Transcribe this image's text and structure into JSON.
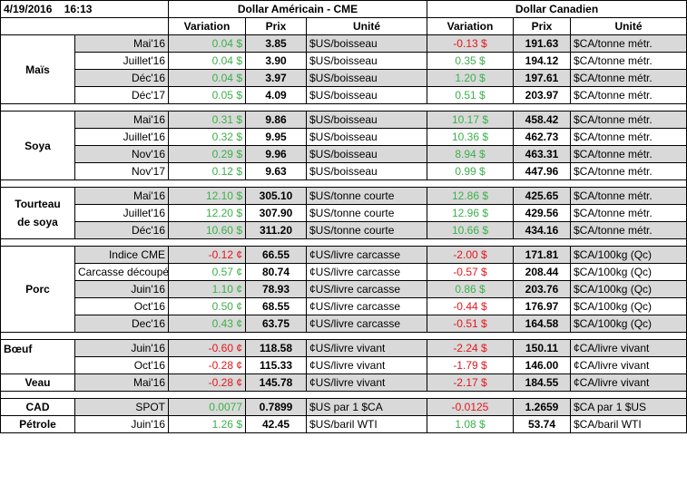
{
  "header": {
    "date": "4/19/2016",
    "time": "16:13",
    "group_usd": "Dollar Américain - CME",
    "group_cad": "Dollar Canadien",
    "col_variation": "Variation",
    "col_prix": "Prix",
    "col_unite": "Unité"
  },
  "colors": {
    "positive": "#3cb04a",
    "negative": "#e3161c",
    "row_shade": "#d9d9d9"
  },
  "rows": [
    {
      "commodity": "Maïs",
      "month": "Mai'16",
      "usd_var": "0.04 $",
      "usd_price": "3.85",
      "usd_unit": "$US/boisseau",
      "cad_var": "-0.13 $",
      "cad_price": "191.63",
      "cad_unit": "$CA/tonne métr."
    },
    {
      "commodity": "",
      "month": "Juillet'16",
      "usd_var": "0.04 $",
      "usd_price": "3.90",
      "usd_unit": "$US/boisseau",
      "cad_var": "0.35 $",
      "cad_price": "194.12",
      "cad_unit": "$CA/tonne métr."
    },
    {
      "commodity": "",
      "month": "Déc'16",
      "usd_var": "0.04 $",
      "usd_price": "3.97",
      "usd_unit": "$US/boisseau",
      "cad_var": "1.20 $",
      "cad_price": "197.61",
      "cad_unit": "$CA/tonne métr."
    },
    {
      "commodity": "",
      "month": "Déc'17",
      "usd_var": "0.05 $",
      "usd_price": "4.09",
      "usd_unit": "$US/boisseau",
      "cad_var": "0.51 $",
      "cad_price": "203.97",
      "cad_unit": "$CA/tonne métr."
    },
    {
      "commodity": "Soya",
      "month": "Mai'16",
      "usd_var": "0.31 $",
      "usd_price": "9.86",
      "usd_unit": "$US/boisseau",
      "cad_var": "10.17 $",
      "cad_price": "458.42",
      "cad_unit": "$CA/tonne métr."
    },
    {
      "commodity": "",
      "month": "Juillet'16",
      "usd_var": "0.32 $",
      "usd_price": "9.95",
      "usd_unit": "$US/boisseau",
      "cad_var": "10.36 $",
      "cad_price": "462.73",
      "cad_unit": "$CA/tonne métr."
    },
    {
      "commodity": "",
      "month": "Nov'16",
      "usd_var": "0.29 $",
      "usd_price": "9.96",
      "usd_unit": "$US/boisseau",
      "cad_var": "8.94 $",
      "cad_price": "463.31",
      "cad_unit": "$CA/tonne métr."
    },
    {
      "commodity": "",
      "month": "Nov'17",
      "usd_var": "0.12 $",
      "usd_price": "9.63",
      "usd_unit": "$US/boisseau",
      "cad_var": "0.99 $",
      "cad_price": "447.96",
      "cad_unit": "$CA/tonne métr."
    },
    {
      "commodity": "Tourteau",
      "month": "Mai'16",
      "usd_var": "12.10 $",
      "usd_price": "305.10",
      "usd_unit": "$US/tonne courte",
      "cad_var": "12.86 $",
      "cad_price": "425.65",
      "cad_unit": "$CA/tonne métr."
    },
    {
      "commodity": "de soya",
      "month": "Juillet'16",
      "usd_var": "12.20 $",
      "usd_price": "307.90",
      "usd_unit": "$US/tonne courte",
      "cad_var": "12.96 $",
      "cad_price": "429.56",
      "cad_unit": "$CA/tonne métr."
    },
    {
      "commodity": "",
      "month": "Déc'16",
      "usd_var": "10.60 $",
      "usd_price": "311.20",
      "usd_unit": "$US/tonne courte",
      "cad_var": "10.66 $",
      "cad_price": "434.16",
      "cad_unit": "$CA/tonne métr."
    },
    {
      "commodity": "",
      "month": "Indice CME",
      "usd_var": "-0.12 ¢",
      "usd_price": "66.55",
      "usd_unit": "¢US/livre carcasse",
      "cad_var": "-2.00 $",
      "cad_price": "171.81",
      "cad_unit": "$CA/100kg (Qc)"
    },
    {
      "commodity": "",
      "month": "Carcasse découpée",
      "usd_var": "0.57 ¢",
      "usd_price": "80.74",
      "usd_unit": "¢US/livre carcasse",
      "cad_var": "-0.57 $",
      "cad_price": "208.44",
      "cad_unit": "$CA/100kg (Qc)"
    },
    {
      "commodity": "Porc",
      "month": "Juin'16",
      "usd_var": "1.10 ¢",
      "usd_price": "78.93",
      "usd_unit": "¢US/livre carcasse",
      "cad_var": "0.86 $",
      "cad_price": "203.76",
      "cad_unit": "$CA/100kg (Qc)"
    },
    {
      "commodity": "",
      "month": "Oct'16",
      "usd_var": "0.50 ¢",
      "usd_price": "68.55",
      "usd_unit": "¢US/livre carcasse",
      "cad_var": "-0.44 $",
      "cad_price": "176.97",
      "cad_unit": "$CA/100kg (Qc)"
    },
    {
      "commodity": "",
      "month": "Dec'16",
      "usd_var": "0.43 ¢",
      "usd_price": "63.75",
      "usd_unit": "¢US/livre carcasse",
      "cad_var": "-0.51 $",
      "cad_price": "164.58",
      "cad_unit": "$CA/100kg (Qc)"
    },
    {
      "commodity": "Bœuf",
      "month": "Juin'16",
      "usd_var": "-0.60 ¢",
      "usd_price": "118.58",
      "usd_unit": "¢US/livre vivant",
      "cad_var": "-2.24 $",
      "cad_price": "150.11",
      "cad_unit": "¢CA/livre vivant"
    },
    {
      "commodity": "",
      "month": "Oct'16",
      "usd_var": "-0.28 ¢",
      "usd_price": "115.33",
      "usd_unit": "¢US/livre vivant",
      "cad_var": "-1.79 $",
      "cad_price": "146.00",
      "cad_unit": "¢CA/livre vivant"
    },
    {
      "commodity": "Veau",
      "month": "Mai'16",
      "usd_var": "-0.28 ¢",
      "usd_price": "145.78",
      "usd_unit": "¢US/livre vivant",
      "cad_var": "-2.17 $",
      "cad_price": "184.55",
      "cad_unit": "¢CA/livre vivant"
    },
    {
      "commodity": "CAD",
      "month": "SPOT",
      "usd_var": "0.0077",
      "usd_price": "0.7899",
      "usd_unit": "$US par 1 $CA",
      "cad_var": "-0.0125",
      "cad_price": "1.2659",
      "cad_unit": "$CA par 1 $US"
    },
    {
      "commodity": "Pétrole",
      "month": "Juin'16",
      "usd_var": "1.26 $",
      "usd_price": "42.45",
      "usd_unit": "$US/baril WTI",
      "cad_var": "1.08 $",
      "cad_price": "53.74",
      "cad_unit": "$CA/baril WTI"
    }
  ]
}
